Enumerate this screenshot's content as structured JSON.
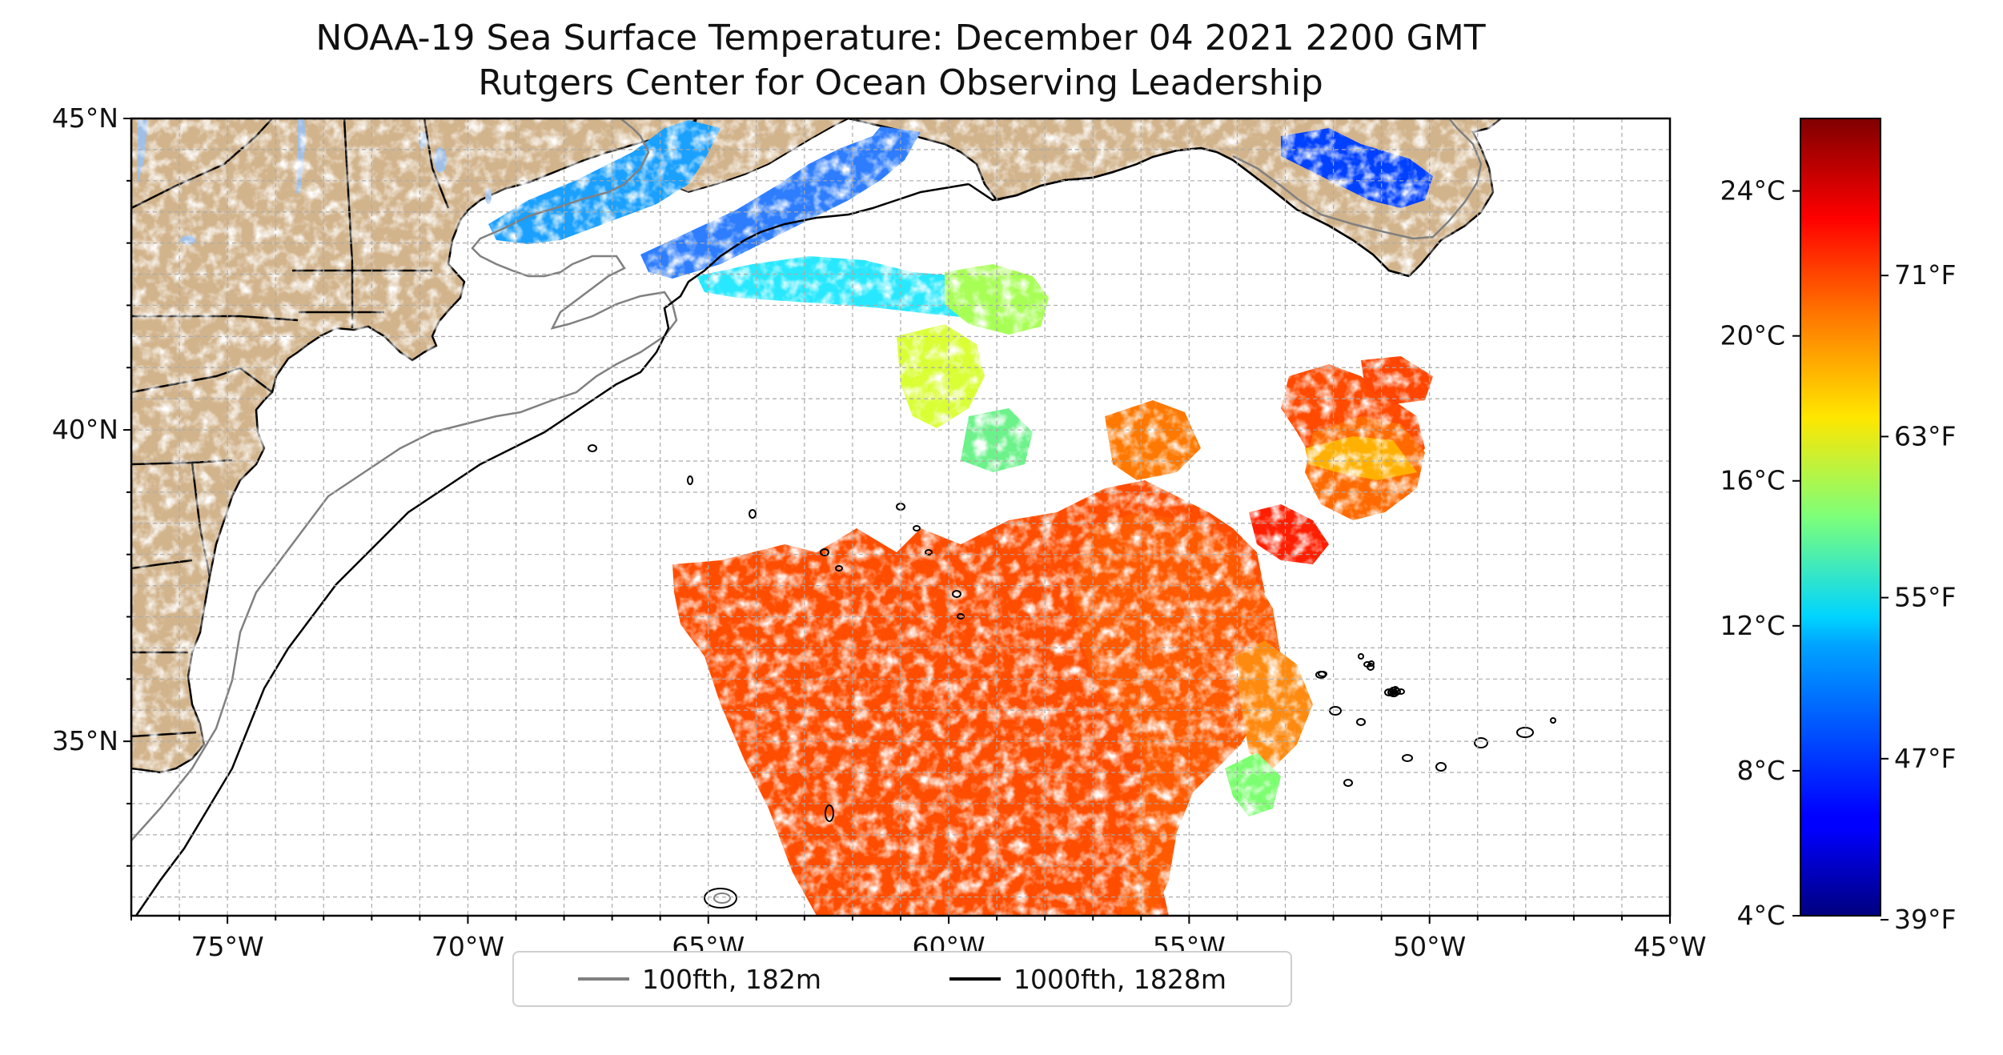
{
  "title": {
    "line1": "NOAA-19 Sea Surface Temperature: December 04 2021 2200 GMT",
    "line2": "Rutgers Center for Ocean Observing Leadership"
  },
  "map": {
    "lon_range": [
      -77,
      -45
    ],
    "lat_range": [
      32.2,
      45
    ],
    "lon_ticks": [
      {
        "value": -75,
        "label": "75°W"
      },
      {
        "value": -70,
        "label": "70°W"
      },
      {
        "value": -65,
        "label": "65°W"
      },
      {
        "value": -60,
        "label": "60°W"
      },
      {
        "value": -55,
        "label": "55°W"
      },
      {
        "value": -50,
        "label": "50°W"
      },
      {
        "value": -45,
        "label": "45°W"
      }
    ],
    "lat_ticks": [
      {
        "value": 45,
        "label": "45°N"
      },
      {
        "value": 40,
        "label": "40°N"
      },
      {
        "value": 35,
        "label": "35°N"
      }
    ],
    "gridlines": true,
    "land_color": "#d2b48c",
    "water_color": "#ffffff",
    "lake_color": "#9fbfe6"
  },
  "colorbar": {
    "colormap": "jet",
    "range_celsius": [
      4,
      26
    ],
    "celsius_ticks": [
      {
        "value": 24,
        "label": "24°C"
      },
      {
        "value": 20,
        "label": "20°C"
      },
      {
        "value": 16,
        "label": "16°C"
      },
      {
        "value": 12,
        "label": "12°C"
      },
      {
        "value": 8,
        "label": "8°C"
      },
      {
        "value": 4,
        "label": "4°C"
      }
    ],
    "fahrenheit_ticks": [
      {
        "value": 71,
        "label": "71°F"
      },
      {
        "value": 63,
        "label": "63°F"
      },
      {
        "value": 55,
        "label": "55°F"
      },
      {
        "value": 47,
        "label": "47°F"
      },
      {
        "value": 39,
        "label": "39°F"
      }
    ]
  },
  "legend": {
    "entries": [
      {
        "label": "100fth, 182m",
        "color": "#808080"
      },
      {
        "label": "1000fth, 1828m",
        "color": "#000000"
      }
    ]
  }
}
